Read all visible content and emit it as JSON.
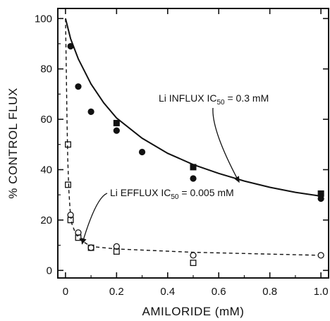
{
  "chart_data": {
    "type": "scatter",
    "title": "",
    "xlabel": "AMILORIDE (mM)",
    "ylabel": "% CONTROL FLUX",
    "xlim": [
      -0.03,
      1.03
    ],
    "ylim": [
      -3,
      104
    ],
    "x_ticks": [
      0,
      0.2,
      0.4,
      0.6,
      0.8,
      1.0
    ],
    "x_tick_labels": [
      "0",
      "0.2",
      "0.4",
      "0.6",
      "0.8",
      "1.0"
    ],
    "y_ticks": [
      0,
      20,
      40,
      60,
      80,
      100
    ],
    "y_tick_labels": [
      "0",
      "20",
      "40",
      "60",
      "80",
      "100"
    ],
    "grid": false,
    "legend": "none",
    "series": [
      {
        "marker": "filled-circle",
        "points": [
          [
            0.02,
            89
          ],
          [
            0.05,
            73
          ],
          [
            0.1,
            63
          ],
          [
            0.2,
            55.5
          ],
          [
            0.3,
            47
          ],
          [
            0.5,
            36.5
          ],
          [
            1.0,
            28.5
          ]
        ]
      },
      {
        "marker": "filled-square",
        "points": [
          [
            0.2,
            58.5
          ],
          [
            0.5,
            41
          ],
          [
            1.0,
            30.5
          ]
        ]
      },
      {
        "marker": "open-circle",
        "points": [
          [
            0.02,
            22
          ],
          [
            0.05,
            15
          ],
          [
            0.1,
            9
          ],
          [
            0.2,
            9.5
          ],
          [
            0.5,
            6
          ],
          [
            1.0,
            6
          ]
        ]
      },
      {
        "marker": "open-square",
        "points": [
          [
            0.01,
            50
          ],
          [
            0.01,
            34
          ],
          [
            0.02,
            20
          ],
          [
            0.05,
            13
          ],
          [
            0.1,
            9
          ],
          [
            0.2,
            7.5
          ],
          [
            0.5,
            3
          ]
        ]
      }
    ],
    "fit_curves": [
      {
        "style": "solid",
        "points": [
          [
            0.0,
            100
          ],
          [
            0.02,
            92
          ],
          [
            0.05,
            84
          ],
          [
            0.1,
            74
          ],
          [
            0.15,
            66.5
          ],
          [
            0.2,
            60.5
          ],
          [
            0.3,
            52.5
          ],
          [
            0.4,
            46.5
          ],
          [
            0.5,
            42
          ],
          [
            0.6,
            38.5
          ],
          [
            0.7,
            35.5
          ],
          [
            0.8,
            33
          ],
          [
            0.9,
            31
          ],
          [
            1.0,
            29.5
          ]
        ]
      },
      {
        "style": "dashed",
        "points": [
          [
            0.0,
            100
          ],
          [
            0.003,
            80
          ],
          [
            0.006,
            60
          ],
          [
            0.009,
            44
          ],
          [
            0.013,
            32
          ],
          [
            0.018,
            24
          ],
          [
            0.025,
            18.5
          ],
          [
            0.04,
            14.5
          ],
          [
            0.06,
            12
          ],
          [
            0.1,
            9.5
          ],
          [
            0.2,
            8.5
          ],
          [
            0.5,
            7.2
          ],
          [
            1.0,
            6
          ]
        ]
      }
    ],
    "annotations": [
      {
        "text_main": "Li INFLUX IC",
        "text_sub": "50",
        "text_tail": " = 0.3 mM",
        "arrow_to": [
          0.68,
          35
        ]
      },
      {
        "text_main": "Li EFFLUX IC",
        "text_sub": "50",
        "text_tail": " = 0.005 mM",
        "arrow_to": [
          0.065,
          10.5
        ]
      }
    ]
  }
}
